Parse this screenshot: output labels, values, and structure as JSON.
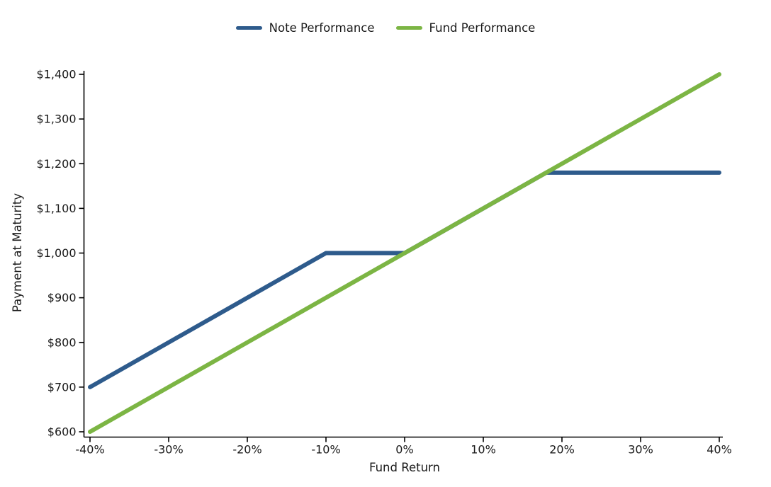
{
  "chart_data": {
    "type": "line",
    "title": "",
    "xlabel": "Fund Return",
    "ylabel": "Payment at Maturity",
    "xlim": [
      -40,
      40
    ],
    "ylim": [
      600,
      1400
    ],
    "grid": false,
    "legend_position": "top-center",
    "x_ticks": [
      {
        "value": -40,
        "label": "-40%"
      },
      {
        "value": -30,
        "label": "-30%"
      },
      {
        "value": -20,
        "label": "-20%"
      },
      {
        "value": -10,
        "label": "-10%"
      },
      {
        "value": 0,
        "label": "0%"
      },
      {
        "value": 10,
        "label": "10%"
      },
      {
        "value": 20,
        "label": "20%"
      },
      {
        "value": 30,
        "label": "30%"
      },
      {
        "value": 40,
        "label": "40%"
      }
    ],
    "y_ticks": [
      {
        "value": 600,
        "label": "$600"
      },
      {
        "value": 700,
        "label": "$700"
      },
      {
        "value": 800,
        "label": "$800"
      },
      {
        "value": 900,
        "label": "$900"
      },
      {
        "value": 1000,
        "label": "$1,000"
      },
      {
        "value": 1100,
        "label": "$1,100"
      },
      {
        "value": 1200,
        "label": "$1,200"
      },
      {
        "value": 1300,
        "label": "$1,300"
      },
      {
        "value": 1400,
        "label": "$1,400"
      }
    ],
    "series": [
      {
        "id": "note-performance",
        "name": "Note Performance",
        "color": "#2e5b8c",
        "points": [
          [
            -40,
            700
          ],
          [
            -10,
            1000
          ],
          [
            0,
            1000
          ],
          [
            18,
            1180
          ],
          [
            40,
            1180
          ]
        ]
      },
      {
        "id": "fund-performance",
        "name": "Fund Performance",
        "color": "#7cb544",
        "points": [
          [
            -40,
            600
          ],
          [
            40,
            1400
          ]
        ]
      }
    ]
  }
}
